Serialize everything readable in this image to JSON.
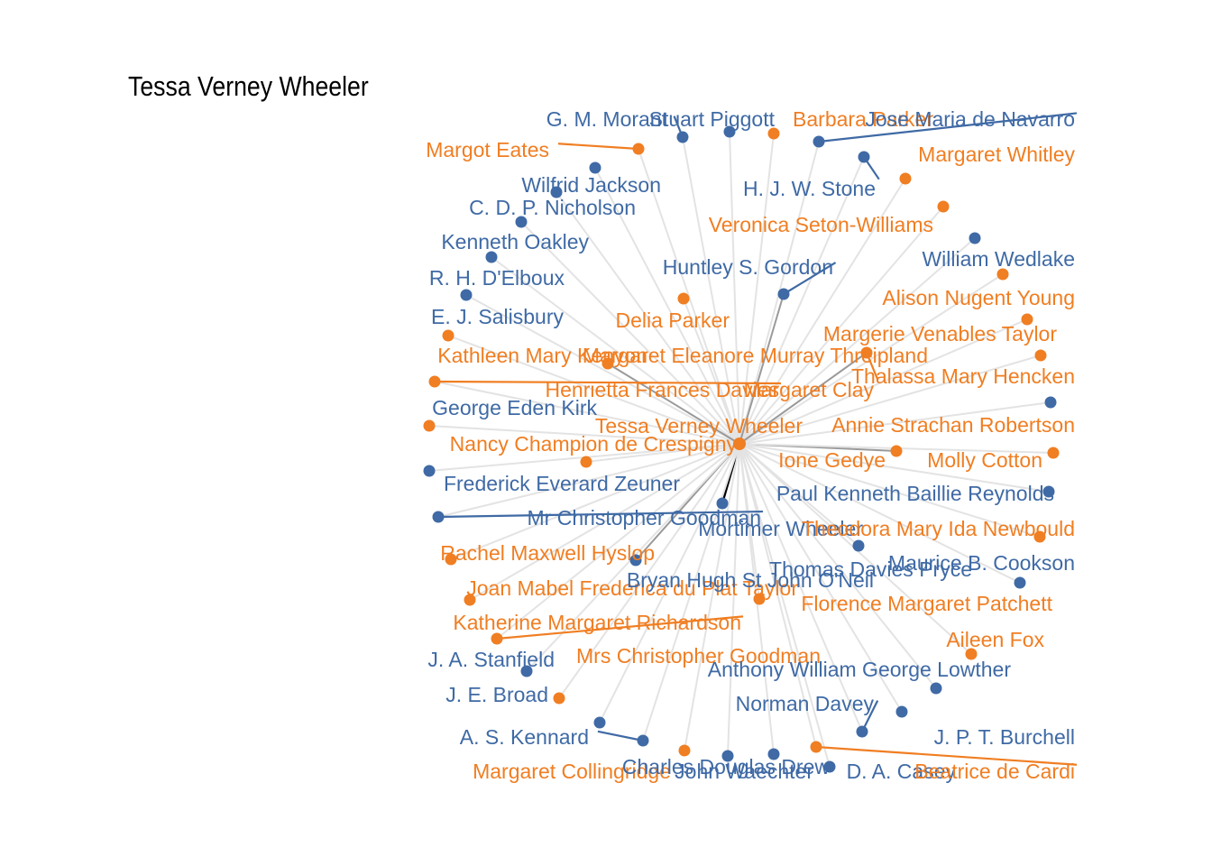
{
  "title": "Tessa Verney Wheeler",
  "colors": {
    "female": "#F07E22",
    "male": "#3F6AA5",
    "edge": "#E3E3E3",
    "strong": "#9A9A9A",
    "strongest": "#000000"
  },
  "center": {
    "label": "Tessa Verney Wheeler",
    "gender": "female"
  },
  "nodes": [
    {
      "label": "G. M. Morant",
      "gender": "male"
    },
    {
      "label": "Stuart Piggott",
      "gender": "male"
    },
    {
      "label": "Barbara Parker",
      "gender": "female"
    },
    {
      "label": "Jose Maria de Navarro",
      "gender": "male"
    },
    {
      "label": "Margot Eates",
      "gender": "female"
    },
    {
      "label": "Margaret Whitley",
      "gender": "female"
    },
    {
      "label": "Wilfrid Jackson",
      "gender": "male"
    },
    {
      "label": "H. J. W. Stone",
      "gender": "male"
    },
    {
      "label": "C. D. P. Nicholson",
      "gender": "male"
    },
    {
      "label": "Veronica Seton-Williams",
      "gender": "female"
    },
    {
      "label": "Kenneth Oakley",
      "gender": "male"
    },
    {
      "label": "William Wedlake",
      "gender": "male"
    },
    {
      "label": "Huntley S. Gordon",
      "gender": "male"
    },
    {
      "label": "R. H. D'Elboux",
      "gender": "male"
    },
    {
      "label": "Alison Nugent Young",
      "gender": "female"
    },
    {
      "label": "Delia Parker",
      "gender": "female"
    },
    {
      "label": "E. J. Salisbury",
      "gender": "male"
    },
    {
      "label": "Margerie Venables Taylor",
      "gender": "female"
    },
    {
      "label": "Kathleen Mary Kenyon",
      "gender": "female"
    },
    {
      "label": "Margaret Eleanore Murray Threipland",
      "gender": "female"
    },
    {
      "label": "Thalassa Mary Hencken",
      "gender": "female"
    },
    {
      "label": "Henrietta Frances Davies",
      "gender": "female"
    },
    {
      "label": "Margaret Clay",
      "gender": "female"
    },
    {
      "label": "George Eden Kirk",
      "gender": "male"
    },
    {
      "label": "Annie Strachan Robertson",
      "gender": "female"
    },
    {
      "label": "Nancy Champion de Crespigny",
      "gender": "female"
    },
    {
      "label": "Ione Gedye",
      "gender": "female"
    },
    {
      "label": "Molly Cotton",
      "gender": "female"
    },
    {
      "label": "Frederick Everard Zeuner",
      "gender": "male"
    },
    {
      "label": "Paul Kenneth Baillie Reynolds",
      "gender": "male"
    },
    {
      "label": "Mr Christopher Goodman",
      "gender": "male"
    },
    {
      "label": "Mortimer Wheeler",
      "gender": "male"
    },
    {
      "label": "Theodora Mary Ida Newbould",
      "gender": "female"
    },
    {
      "label": "Rachel Maxwell Hyslop",
      "gender": "female"
    },
    {
      "label": "Maurice B. Cookson",
      "gender": "male"
    },
    {
      "label": "Thomas Davies Pryce",
      "gender": "male"
    },
    {
      "label": "Joan Mabel Frederica du Plat Taylor",
      "gender": "female"
    },
    {
      "label": "Bryan Hugh St John O'Neil",
      "gender": "male"
    },
    {
      "label": "Florence Margaret Patchett",
      "gender": "female"
    },
    {
      "label": "Katherine Margaret Richardson",
      "gender": "female"
    },
    {
      "label": "Aileen Fox",
      "gender": "female"
    },
    {
      "label": "J. A. Stanfield",
      "gender": "male"
    },
    {
      "label": "Mrs Christopher Goodman",
      "gender": "female"
    },
    {
      "label": "Anthony William George Lowther",
      "gender": "male"
    },
    {
      "label": "J. E. Broad",
      "gender": "male"
    },
    {
      "label": "Norman Davey",
      "gender": "male"
    },
    {
      "label": "A. S. Kennard",
      "gender": "male"
    },
    {
      "label": "J. P. T. Burchell",
      "gender": "male"
    },
    {
      "label": "Margaret Collingridge",
      "gender": "female"
    },
    {
      "label": "John Waechter",
      "gender": "male"
    },
    {
      "label": "D. A. Casey",
      "gender": "male"
    },
    {
      "label": "Beatrice de Cardi",
      "gender": "female"
    },
    {
      "label": "Charles Douglas Drew",
      "gender": "male"
    }
  ]
}
